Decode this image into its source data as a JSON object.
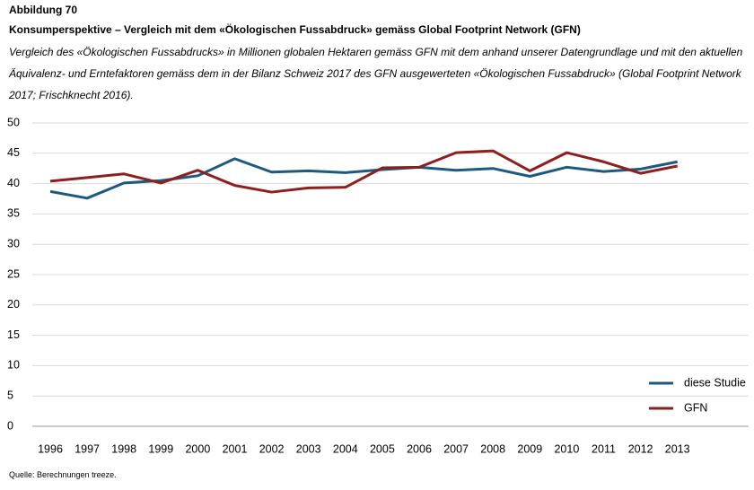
{
  "chart_data": {
    "type": "line",
    "title": "Abbildung 70",
    "subtitle": "Konsumperspektive – Vergleich mit dem «Ökologischen Fussabdruck» gemäss Global Footprint Network (GFN)",
    "description": "Vergleich des «Ökologischen Fussabdrucks» in Millionen globalen Hektaren gemäss GFN mit dem anhand unserer Datengrundlage und mit den aktuellen Äquivalenz- und Erntefaktoren gemäss dem in der Bilanz Schweiz 2017 des GFN ausgewerteten «Ökologischen Fussabdruck» (Global Footprint Network 2017; Frischknecht 2016).",
    "source": "Quelle: Berechnungen treeze.",
    "categories": [
      1996,
      1997,
      1998,
      1999,
      2000,
      2001,
      2002,
      2003,
      2004,
      2005,
      2006,
      2007,
      2008,
      2009,
      2010,
      2011,
      2012,
      2013
    ],
    "series": [
      {
        "name": "diese Studie",
        "color": "#1d5a80",
        "values": [
          38.7,
          37.6,
          40.1,
          40.5,
          41.3,
          44.1,
          41.9,
          42.1,
          41.8,
          42.3,
          42.7,
          42.2,
          42.5,
          41.2,
          42.7,
          42.0,
          42.4,
          43.6
        ]
      },
      {
        "name": "GFN",
        "color": "#8e1f1f",
        "values": [
          40.4,
          41.0,
          41.6,
          40.1,
          42.2,
          39.7,
          38.6,
          39.3,
          39.4,
          42.6,
          42.7,
          45.1,
          45.4,
          42.1,
          45.1,
          43.6,
          41.7,
          42.9
        ]
      }
    ],
    "ylim": [
      0,
      50
    ],
    "yticks": [
      0,
      5,
      10,
      15,
      20,
      25,
      30,
      35,
      40,
      45,
      50
    ],
    "grid": true,
    "legend": "lower right"
  }
}
